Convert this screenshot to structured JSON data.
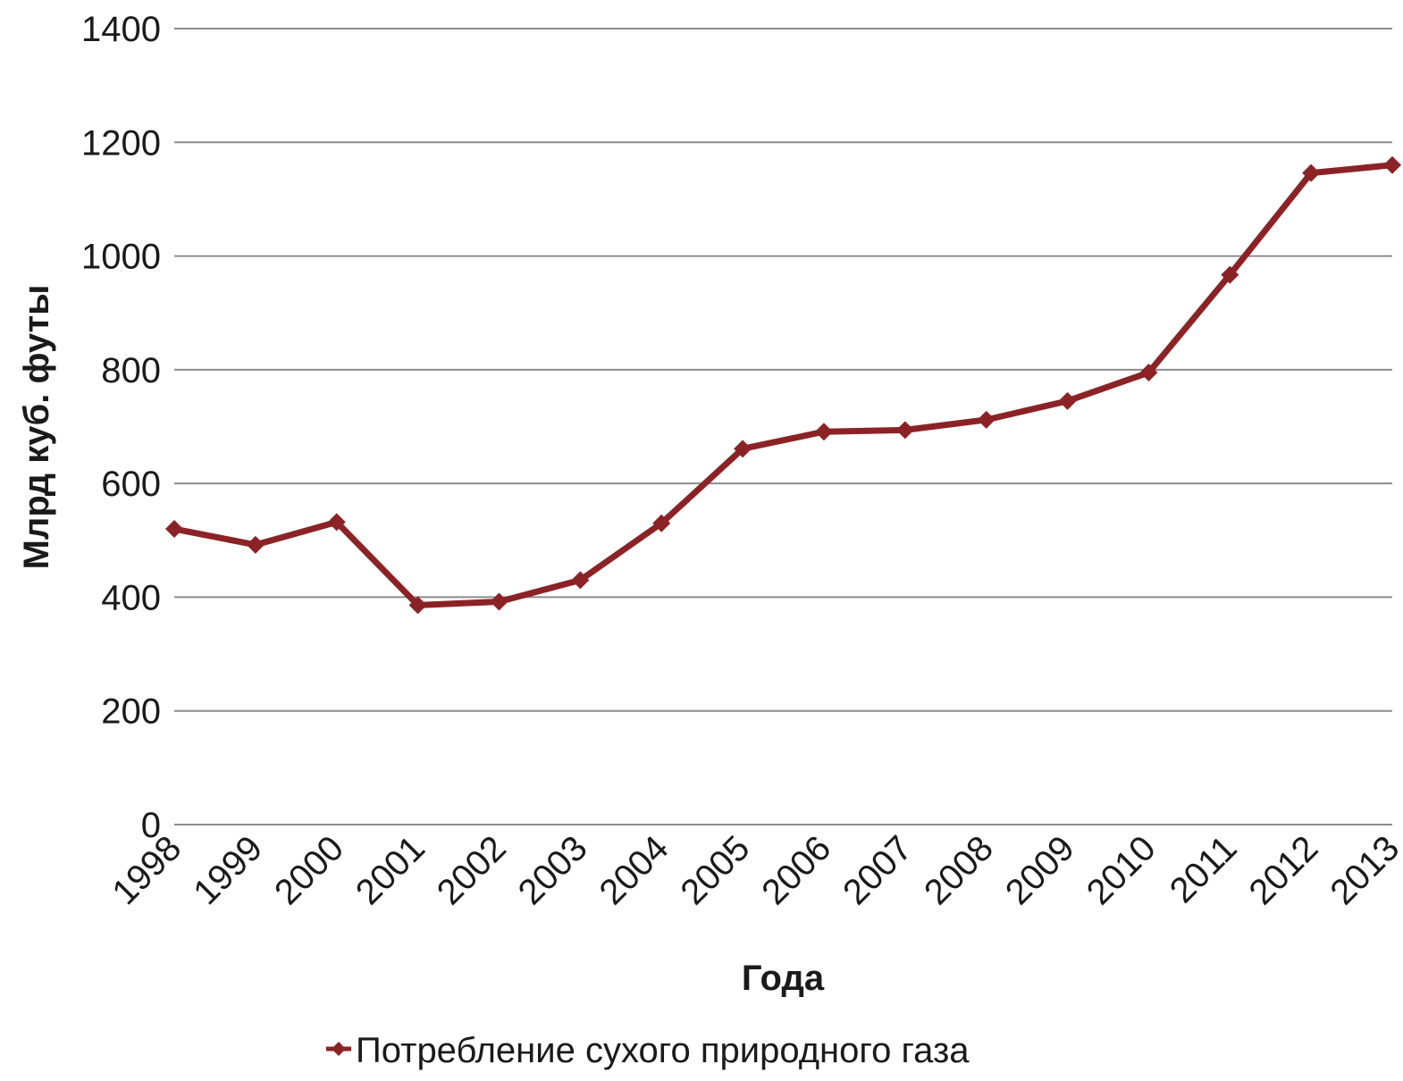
{
  "chart_data": {
    "type": "line",
    "title": "",
    "xlabel": "Года",
    "ylabel": "Млрд куб. футы",
    "ylim": [
      0,
      1400
    ],
    "yticks": [
      0,
      200,
      400,
      600,
      800,
      1000,
      1200,
      1400
    ],
    "grid": true,
    "legend_position": "bottom",
    "categories": [
      "1998",
      "1999",
      "2000",
      "2001",
      "2002",
      "2003",
      "2004",
      "2005",
      "2006",
      "2007",
      "2008",
      "2009",
      "2010",
      "2011",
      "2012",
      "2013"
    ],
    "series": [
      {
        "name": "Потребление сухого природного газа",
        "color": "#8b2326",
        "marker": "diamond",
        "values": [
          520,
          492,
          532,
          386,
          392,
          430,
          530,
          661,
          691,
          694,
          712,
          745,
          795,
          967,
          1146,
          1160
        ]
      }
    ]
  }
}
